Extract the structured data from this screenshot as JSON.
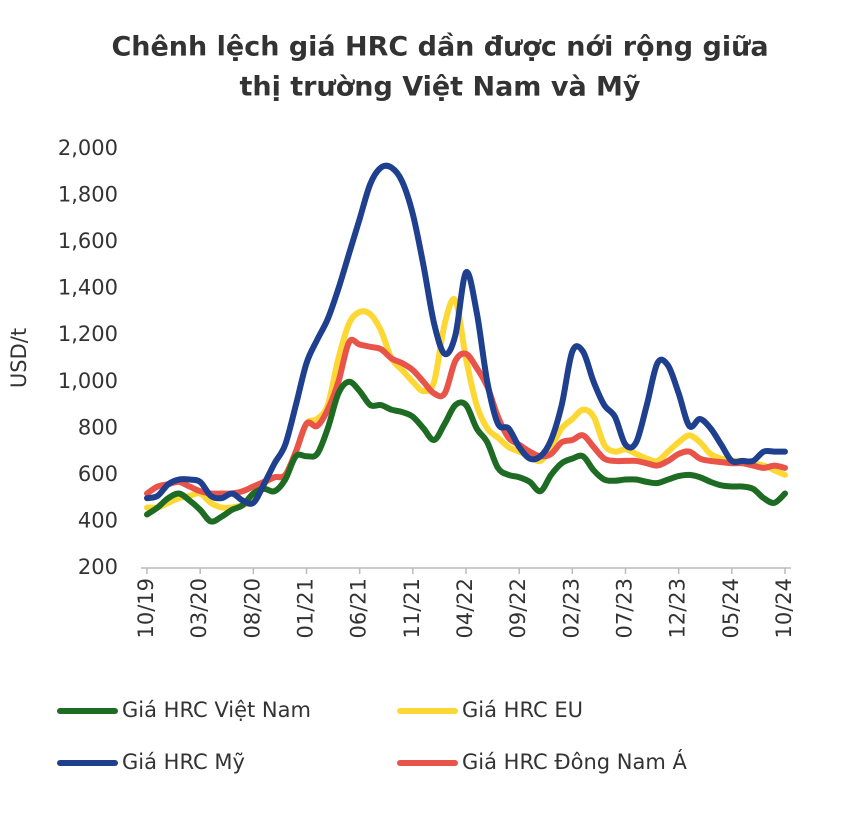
{
  "chart_data": {
    "type": "line",
    "title": [
      "Chênh lệch giá HRC dần được nới rộng giữa",
      "thị trường Việt Nam và Mỹ"
    ],
    "y_label": "USD/t",
    "categories": [
      "10/19",
      null,
      null,
      null,
      null,
      "03/20",
      null,
      null,
      null,
      null,
      "08/20",
      null,
      null,
      null,
      null,
      "01/21",
      null,
      null,
      null,
      null,
      "06/21",
      null,
      null,
      null,
      null,
      "11/21",
      null,
      null,
      null,
      null,
      "04/22",
      null,
      null,
      null,
      null,
      "09/22",
      null,
      null,
      null,
      null,
      "02/23",
      null,
      null,
      null,
      null,
      "07/23",
      null,
      null,
      null,
      null,
      "12/23",
      null,
      null,
      null,
      null,
      "05/24",
      null,
      null,
      null,
      null,
      "10/24"
    ],
    "ylim": [
      200,
      2000
    ],
    "yticks": [
      200,
      400,
      600,
      800,
      {
        "value": 1000,
        "label": "1,000"
      },
      {
        "value": 1200,
        "label": "1,200"
      },
      {
        "value": 1400,
        "label": "1,400"
      },
      {
        "value": 1600,
        "label": "1,600"
      },
      {
        "value": 1800,
        "label": "1,800"
      },
      {
        "value": 2000,
        "label": "2,000"
      }
    ],
    "series": [
      {
        "name": "Giá HRC Việt Nam",
        "color": "#1e6b23",
        "values": [
          430,
          460,
          500,
          520,
          490,
          450,
          400,
          420,
          450,
          470,
          520,
          540,
          530,
          580,
          680,
          680,
          690,
          800,
          950,
          1000,
          960,
          900,
          900,
          880,
          870,
          850,
          800,
          750,
          820,
          900,
          900,
          800,
          740,
          630,
          600,
          590,
          570,
          530,
          600,
          650,
          670,
          680,
          620,
          580,
          575,
          580,
          580,
          570,
          565,
          580,
          595,
          600,
          590,
          570,
          555,
          550,
          550,
          540,
          500,
          480,
          520
        ]
      },
      {
        "name": "Giá HRC EU",
        "color": "#fdd835",
        "values": [
          460,
          460,
          480,
          500,
          510,
          520,
          480,
          460,
          460,
          470,
          490,
          560,
          590,
          600,
          700,
          820,
          840,
          900,
          1100,
          1250,
          1300,
          1290,
          1220,
          1100,
          1050,
          1000,
          960,
          1000,
          1250,
          1350,
          1100,
          900,
          800,
          760,
          720,
          700,
          680,
          660,
          720,
          800,
          840,
          880,
          850,
          730,
          700,
          710,
          690,
          670,
          660,
          700,
          740,
          770,
          740,
          690,
          670,
          660,
          660,
          650,
          640,
          620,
          600
        ]
      },
      {
        "name": "Giá HRC Mỹ",
        "color": "#1f3f8f",
        "values": [
          500,
          510,
          560,
          580,
          580,
          570,
          510,
          500,
          520,
          490,
          480,
          560,
          650,
          730,
          900,
          1080,
          1180,
          1270,
          1400,
          1550,
          1700,
          1850,
          1920,
          1920,
          1860,
          1720,
          1500,
          1250,
          1120,
          1200,
          1470,
          1300,
          1000,
          820,
          800,
          720,
          670,
          680,
          750,
          900,
          1130,
          1130,
          1000,
          900,
          850,
          730,
          740,
          900,
          1080,
          1070,
          950,
          810,
          840,
          800,
          730,
          660,
          660,
          660,
          700,
          700,
          700
        ]
      },
      {
        "name": "Giá HRC Đông Nam Á",
        "color": "#e8544a",
        "values": [
          520,
          550,
          560,
          570,
          550,
          530,
          520,
          520,
          520,
          530,
          550,
          570,
          590,
          600,
          700,
          820,
          810,
          880,
          1000,
          1170,
          1160,
          1150,
          1140,
          1100,
          1080,
          1050,
          1000,
          950,
          950,
          1090,
          1120,
          1060,
          980,
          850,
          760,
          730,
          700,
          680,
          690,
          740,
          750,
          770,
          720,
          670,
          660,
          660,
          660,
          650,
          640,
          660,
          690,
          700,
          670,
          660,
          655,
          650,
          650,
          640,
          630,
          640,
          630
        ]
      }
    ]
  }
}
